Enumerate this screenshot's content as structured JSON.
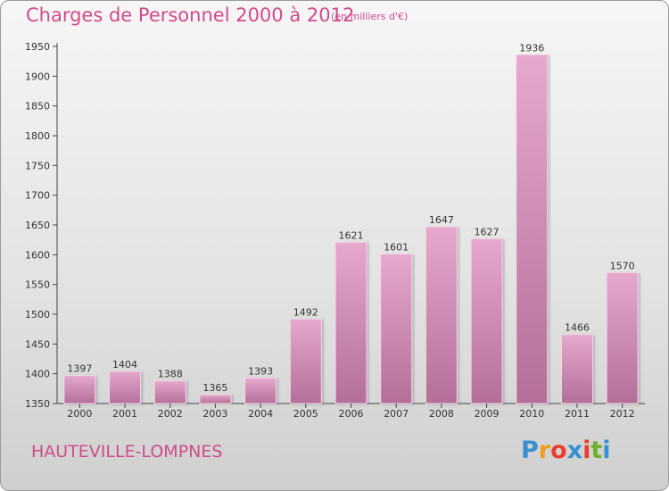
{
  "header": {
    "title": "Charges de Personnel 2000 à 2012",
    "subtitle": "(en milliers d'€)"
  },
  "footer": {
    "commune": "HAUTEVILLE-LOMPNES",
    "brand_letters": [
      "P",
      "r",
      "o",
      "x",
      "i",
      "t",
      "i"
    ],
    "brand_colors": [
      "#3a8fd0",
      "#f0a020",
      "#e84030",
      "#3a8fd0",
      "#e84030",
      "#70b030",
      "#3a8fd0"
    ]
  },
  "colors": {
    "bar_top": "#e6a8cc",
    "bar_bottom": "#b36f98",
    "title": "#d04b8a"
  },
  "chart_data": {
    "type": "bar",
    "title": "Charges de Personnel 2000 à 2012",
    "subtitle": "(en milliers d'€)",
    "categories": [
      "2000",
      "2001",
      "2002",
      "2003",
      "2004",
      "2005",
      "2006",
      "2007",
      "2008",
      "2009",
      "2010",
      "2011",
      "2012"
    ],
    "values": [
      1397,
      1404,
      1388,
      1365,
      1393,
      1492,
      1621,
      1601,
      1647,
      1627,
      1936,
      1466,
      1570
    ],
    "ylim": [
      1350,
      1950
    ],
    "yticks": [
      1350,
      1400,
      1450,
      1500,
      1550,
      1600,
      1650,
      1700,
      1750,
      1800,
      1850,
      1900,
      1950
    ],
    "grid": false,
    "legend": "none"
  }
}
